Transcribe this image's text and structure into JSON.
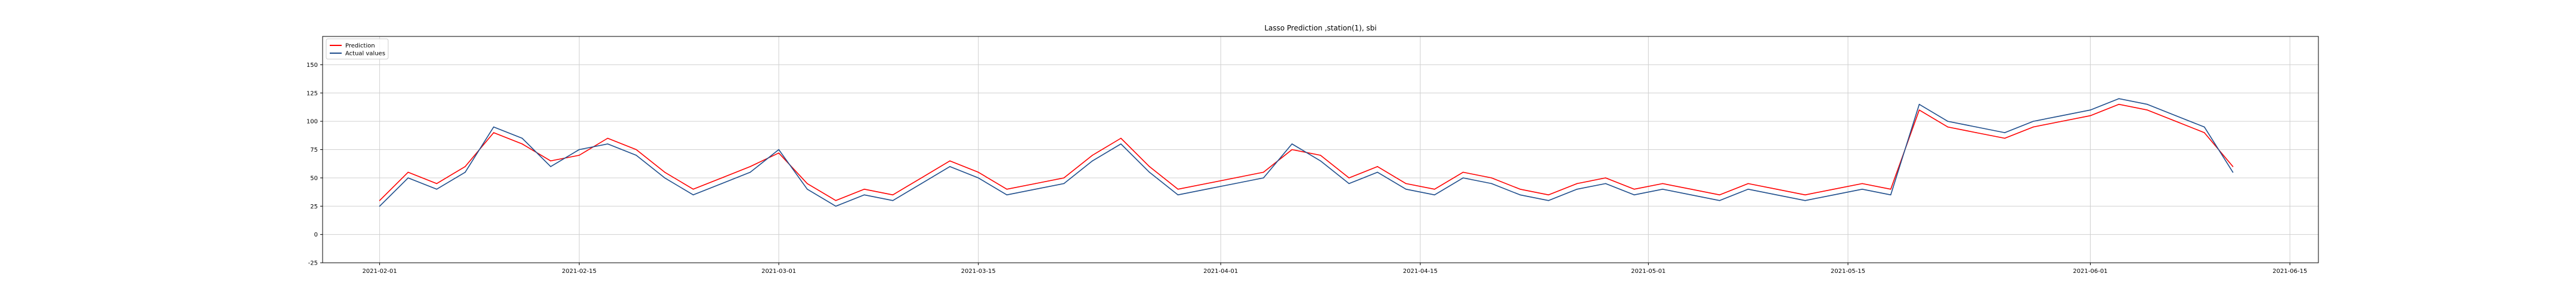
{
  "chart_data": {
    "type": "line",
    "title": "Lasso Prediction ,station(1), sbi",
    "xlabel": "",
    "ylabel": "",
    "x_range": [
      "2021-01-28",
      "2021-06-17"
    ],
    "ylim": [
      -25,
      175
    ],
    "grid": true,
    "legend_position": "top-left",
    "x_ticks": [
      "2021-02-01",
      "2021-02-15",
      "2021-03-01",
      "2021-03-15",
      "2021-04-01",
      "2021-04-15",
      "2021-05-01",
      "2021-05-15",
      "2021-06-01",
      "2021-06-15"
    ],
    "y_ticks": [
      -25,
      0,
      25,
      50,
      75,
      100,
      125,
      150
    ],
    "series": [
      {
        "name": "Prediction",
        "color": "#ff0000",
        "x": [
          "2021-02-01",
          "2021-02-03",
          "2021-02-05",
          "2021-02-07",
          "2021-02-09",
          "2021-02-11",
          "2021-02-13",
          "2021-02-15",
          "2021-02-17",
          "2021-02-19",
          "2021-02-21",
          "2021-02-23",
          "2021-02-25",
          "2021-02-27",
          "2021-03-01",
          "2021-03-03",
          "2021-03-05",
          "2021-03-07",
          "2021-03-09",
          "2021-03-11",
          "2021-03-13",
          "2021-03-15",
          "2021-03-17",
          "2021-03-19",
          "2021-03-21",
          "2021-03-23",
          "2021-03-25",
          "2021-03-27",
          "2021-03-29",
          "2021-03-31",
          "2021-04-02",
          "2021-04-04",
          "2021-04-06",
          "2021-04-08",
          "2021-04-10",
          "2021-04-12",
          "2021-04-14",
          "2021-04-16",
          "2021-04-18",
          "2021-04-20",
          "2021-04-22",
          "2021-04-24",
          "2021-04-26",
          "2021-04-28",
          "2021-04-30",
          "2021-05-02",
          "2021-05-04",
          "2021-05-06",
          "2021-05-08",
          "2021-05-10",
          "2021-05-12",
          "2021-05-14",
          "2021-05-16",
          "2021-05-18",
          "2021-05-20",
          "2021-05-22",
          "2021-05-24",
          "2021-05-26",
          "2021-05-28",
          "2021-05-30",
          "2021-06-01",
          "2021-06-03",
          "2021-06-05",
          "2021-06-07",
          "2021-06-09",
          "2021-06-11"
        ],
        "values": [
          30,
          55,
          45,
          60,
          90,
          80,
          65,
          70,
          85,
          75,
          55,
          40,
          50,
          60,
          72,
          45,
          30,
          40,
          35,
          50,
          65,
          55,
          40,
          45,
          50,
          70,
          85,
          60,
          40,
          45,
          50,
          55,
          75,
          70,
          50,
          60,
          45,
          40,
          55,
          50,
          40,
          35,
          45,
          50,
          40,
          45,
          40,
          35,
          45,
          40,
          35,
          40,
          45,
          40,
          110,
          95,
          90,
          85,
          95,
          100,
          105,
          115,
          110,
          100,
          90,
          60
        ]
      },
      {
        "name": "Actual values",
        "color": "#1f4e8c",
        "x": [
          "2021-02-01",
          "2021-02-03",
          "2021-02-05",
          "2021-02-07",
          "2021-02-09",
          "2021-02-11",
          "2021-02-13",
          "2021-02-15",
          "2021-02-17",
          "2021-02-19",
          "2021-02-21",
          "2021-02-23",
          "2021-02-25",
          "2021-02-27",
          "2021-03-01",
          "2021-03-03",
          "2021-03-05",
          "2021-03-07",
          "2021-03-09",
          "2021-03-11",
          "2021-03-13",
          "2021-03-15",
          "2021-03-17",
          "2021-03-19",
          "2021-03-21",
          "2021-03-23",
          "2021-03-25",
          "2021-03-27",
          "2021-03-29",
          "2021-03-31",
          "2021-04-02",
          "2021-04-04",
          "2021-04-06",
          "2021-04-08",
          "2021-04-10",
          "2021-04-12",
          "2021-04-14",
          "2021-04-16",
          "2021-04-18",
          "2021-04-20",
          "2021-04-22",
          "2021-04-24",
          "2021-04-26",
          "2021-04-28",
          "2021-04-30",
          "2021-05-02",
          "2021-05-04",
          "2021-05-06",
          "2021-05-08",
          "2021-05-10",
          "2021-05-12",
          "2021-05-14",
          "2021-05-16",
          "2021-05-18",
          "2021-05-20",
          "2021-05-22",
          "2021-05-24",
          "2021-05-26",
          "2021-05-28",
          "2021-05-30",
          "2021-06-01",
          "2021-06-03",
          "2021-06-05",
          "2021-06-07",
          "2021-06-09",
          "2021-06-11"
        ],
        "values": [
          25,
          50,
          40,
          55,
          95,
          85,
          60,
          75,
          80,
          70,
          50,
          35,
          45,
          55,
          75,
          40,
          25,
          35,
          30,
          45,
          60,
          50,
          35,
          40,
          45,
          65,
          80,
          55,
          35,
          40,
          45,
          50,
          80,
          65,
          45,
          55,
          40,
          35,
          50,
          45,
          35,
          30,
          40,
          45,
          35,
          40,
          35,
          30,
          40,
          35,
          30,
          35,
          40,
          35,
          115,
          100,
          95,
          90,
          100,
          105,
          110,
          120,
          115,
          105,
          95,
          55
        ]
      }
    ]
  }
}
